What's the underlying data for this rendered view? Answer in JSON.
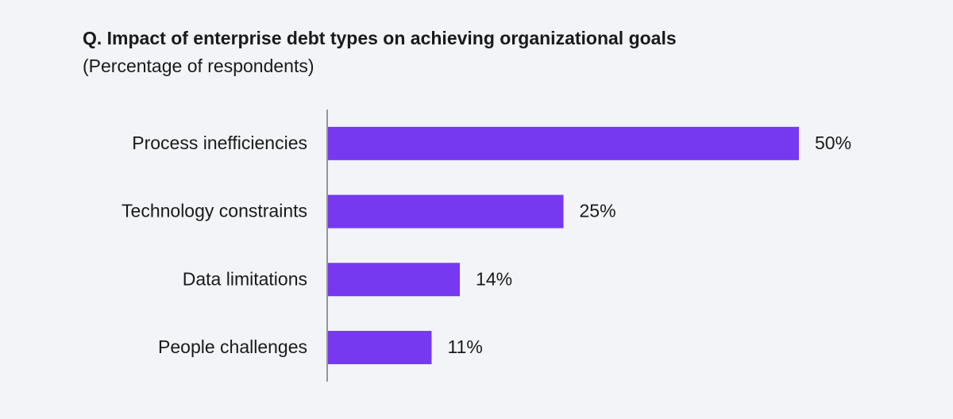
{
  "chart_data": {
    "type": "bar",
    "orientation": "horizontal",
    "title": "Q. Impact of enterprise debt types on achieving organizational goals",
    "subtitle": "(Percentage of respondents)",
    "categories": [
      "Process inefficiencies",
      "Technology constraints",
      "Data limitations",
      "People challenges"
    ],
    "values": [
      50,
      25,
      14,
      11
    ],
    "value_labels": [
      "50%",
      "25%",
      "14%",
      "11%"
    ],
    "color": "#7639f0"
  }
}
